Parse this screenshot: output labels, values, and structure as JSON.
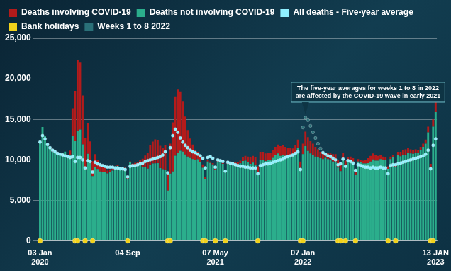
{
  "chart_data": {
    "type": "bar",
    "stacked": true,
    "grid": true,
    "legend": "top",
    "annotation": "The five-year averages for weeks 1 to 8 in 2022\nare affected by the COVID-19 wave in early 2021",
    "ylim": [
      0,
      25000
    ],
    "yticks": [
      0,
      {
        "value": 5000,
        "label": "5,000"
      },
      {
        "value": 10000,
        "label": "10,000"
      },
      {
        "value": 15000,
        "label": "15,000"
      },
      {
        "value": 20000,
        "label": "20,000"
      },
      {
        "value": 25000,
        "label": "25,000"
      }
    ],
    "categories": [
      "03 Jan\n2020",
      null,
      null,
      null,
      null,
      null,
      null,
      null,
      null,
      null,
      null,
      null,
      null,
      null,
      null,
      null,
      null,
      null,
      null,
      null,
      null,
      null,
      null,
      null,
      null,
      null,
      null,
      null,
      null,
      null,
      null,
      null,
      null,
      null,
      null,
      "04 Sep",
      null,
      null,
      null,
      null,
      null,
      null,
      null,
      null,
      null,
      null,
      null,
      null,
      null,
      null,
      null,
      null,
      null,
      null,
      null,
      null,
      null,
      null,
      null,
      null,
      null,
      null,
      null,
      null,
      null,
      null,
      null,
      null,
      null,
      null,
      "07 May\n2021",
      null,
      null,
      null,
      null,
      null,
      null,
      null,
      null,
      null,
      null,
      null,
      null,
      null,
      null,
      null,
      null,
      null,
      null,
      null,
      null,
      null,
      null,
      null,
      null,
      null,
      null,
      null,
      null,
      null,
      null,
      null,
      null,
      null,
      null,
      "07 Jan\n2022",
      null,
      null,
      null,
      null,
      null,
      null,
      null,
      null,
      null,
      null,
      null,
      null,
      null,
      null,
      null,
      null,
      null,
      null,
      null,
      null,
      null,
      null,
      null,
      null,
      null,
      null,
      null,
      null,
      null,
      null,
      null,
      null,
      null,
      null,
      null,
      null,
      null,
      null,
      null,
      null,
      null,
      null,
      null,
      null,
      null,
      null,
      null,
      null,
      null,
      null,
      null,
      null,
      "13 JAN\n2023"
    ],
    "series": [
      {
        "name": "Deaths involving COVID-19",
        "color": "#b31b1b",
        "type": "bar",
        "values": [
          0,
          0,
          0,
          0,
          0,
          0,
          0,
          0,
          0,
          0,
          0,
          103,
          539,
          3475,
          6213,
          8758,
          8237,
          6035,
          3930,
          3810,
          2589,
          1822,
          1588,
          1114,
          783,
          606,
          532,
          366,
          295,
          217,
          193,
          152,
          138,
          101,
          78,
          99,
          139,
          215,
          321,
          438,
          665,
          978,
          1379,
          1937,
          2466,
          2697,
          2964,
          2868,
          2756,
          2661,
          3145,
          2300,
          3699,
          6057,
          7245,
          7776,
          7320,
          6154,
          4678,
          3296,
          2408,
          1811,
          1212,
          913,
          598,
          400,
          272,
          200,
          180,
          150,
          120,
          110,
          100,
          100,
          90,
          95,
          100,
          130,
          180,
          250,
          330,
          450,
          600,
          700,
          800,
          850,
          900,
          950,
          1000,
          1000,
          950,
          900,
          900,
          950,
          1000,
          1100,
          1200,
          1150,
          1100,
          1000,
          1000,
          950,
          950,
          1000,
          800,
          1300,
          1800,
          1700,
          1500,
          1400,
          1200,
          1000,
          800,
          700,
          650,
          700,
          800,
          900,
          1000,
          950,
          900,
          800,
          700,
          600,
          500,
          400,
          300,
          300,
          300,
          350,
          450,
          600,
          700,
          750,
          700,
          600,
          500,
          400,
          350,
          300,
          300,
          300,
          350,
          450,
          550,
          650,
          650,
          600,
          500,
          450,
          400,
          350,
          350,
          400,
          500,
          700,
          500,
          900,
          1200
        ]
      },
      {
        "name": "Deaths not involving COVID-19",
        "color": "#2bae8c",
        "type": "bar",
        "values": [
          12254,
          14058,
          12990,
          11856,
          11612,
          10986,
          10944,
          10841,
          10816,
          10895,
          11019,
          10542,
          10602,
          12912,
          12303,
          13593,
          13760,
          11918,
          8727,
          10763,
          9699,
          8002,
          9121,
          8862,
          8556,
          8534,
          8447,
          8324,
          8528,
          8674,
          8753,
          9240,
          8854,
          8730,
          8954,
          7640,
          9672,
          9308,
          9313,
          9262,
          9338,
          9158,
          9155,
          8926,
          9346,
          9557,
          9571,
          9588,
          8992,
          8859,
          8710,
          6200,
          8301,
          8560,
          10506,
          10900,
          11128,
          11023,
          10676,
          10393,
          10232,
          10088,
          10017,
          10074,
          9713,
          9032,
          7625,
          9798,
          9620,
          9450,
          8780,
          9790,
          9700,
          9500,
          8510,
          9505,
          9400,
          9470,
          9520,
          9450,
          9570,
          9850,
          9900,
          9700,
          9500,
          9650,
          9400,
          8250,
          10000,
          10000,
          9850,
          10000,
          10000,
          10250,
          10600,
          10800,
          10500,
          10650,
          10500,
          10500,
          10500,
          10450,
          10850,
          11500,
          9000,
          10700,
          11700,
          11100,
          10800,
          10600,
          10400,
          10300,
          10200,
          10100,
          10250,
          10100,
          10000,
          9800,
          9700,
          9050,
          8600,
          10100,
          9200,
          9700,
          9900,
          9800,
          8200,
          9800,
          9700,
          9550,
          9550,
          9600,
          9800,
          10050,
          9900,
          9900,
          10100,
          10000,
          9950,
          8900,
          10100,
          10300,
          9150,
          10550,
          10450,
          10550,
          10650,
          10900,
          10800,
          10750,
          10900,
          10850,
          11250,
          11600,
          12000,
          13400,
          9000,
          14100,
          15900
        ]
      },
      {
        "name": "All deaths - Five-year average",
        "color": "#8ff0ff",
        "type": "line",
        "marker": "circle",
        "line_style": "none",
        "values": [
          12200,
          13000,
          12600,
          11900,
          11500,
          11200,
          11000,
          10800,
          10700,
          10600,
          10500,
          10400,
          10300,
          10400,
          9800,
          10300,
          10300,
          10000,
          9000,
          9900,
          9800,
          8500,
          9700,
          9500,
          9400,
          9300,
          9200,
          9100,
          9100,
          9100,
          9000,
          9000,
          8900,
          8900,
          8800,
          7900,
          9200,
          9300,
          9300,
          9400,
          9500,
          9600,
          9800,
          9900,
          10000,
          10100,
          10200,
          10300,
          10400,
          10600,
          11000,
          8400,
          11500,
          13000,
          13800,
          13400,
          12700,
          12200,
          11800,
          11500,
          11200,
          11000,
          10900,
          10700,
          10500,
          10200,
          9000,
          10300,
          10400,
          10200,
          9100,
          10000,
          9900,
          9800,
          8600,
          9700,
          9600,
          9500,
          9400,
          9300,
          9200,
          9200,
          9100,
          9100,
          9000,
          9000,
          9000,
          8300,
          9300,
          9400,
          9500,
          9500,
          9600,
          9700,
          9800,
          9900,
          10000,
          10100,
          10300,
          10400,
          10500,
          10600,
          10800,
          11000,
          8800,
          null,
          null,
          null,
          null,
          null,
          null,
          null,
          null,
          10900,
          10700,
          10500,
          10400,
          10200,
          10000,
          9400,
          9500,
          10100,
          9200,
          9900,
          9800,
          9600,
          8700,
          9400,
          9300,
          9200,
          9100,
          9100,
          9000,
          9100,
          9000,
          9000,
          9100,
          9000,
          9000,
          8300,
          9300,
          9400,
          9400,
          9500,
          9600,
          9700,
          9800,
          9900,
          10000,
          10100,
          10200,
          10300,
          10400,
          10500,
          10700,
          11200,
          8900,
          11800,
          12600
        ]
      },
      {
        "name": "Bank holidays",
        "color": "#f2d21b",
        "type": "line",
        "marker": "circle",
        "line_style": "none",
        "values": [
          0,
          null,
          null,
          null,
          null,
          null,
          null,
          null,
          null,
          null,
          null,
          null,
          null,
          null,
          0,
          0,
          null,
          null,
          0,
          null,
          null,
          0,
          null,
          null,
          null,
          null,
          null,
          null,
          null,
          null,
          null,
          null,
          null,
          null,
          null,
          0,
          null,
          null,
          null,
          null,
          null,
          null,
          null,
          null,
          null,
          null,
          null,
          null,
          null,
          null,
          null,
          0,
          0,
          null,
          null,
          null,
          null,
          null,
          null,
          null,
          null,
          null,
          null,
          null,
          null,
          0,
          0,
          null,
          null,
          null,
          0,
          null,
          null,
          null,
          0,
          null,
          null,
          null,
          null,
          null,
          null,
          null,
          null,
          null,
          null,
          null,
          null,
          0,
          null,
          null,
          null,
          null,
          null,
          null,
          null,
          null,
          null,
          null,
          null,
          null,
          null,
          null,
          null,
          null,
          0,
          0,
          null,
          null,
          null,
          null,
          null,
          null,
          null,
          null,
          null,
          null,
          null,
          null,
          null,
          0,
          0,
          null,
          0,
          null,
          null,
          null,
          0,
          null,
          null,
          null,
          null,
          null,
          null,
          null,
          null,
          null,
          null,
          null,
          null,
          0,
          null,
          null,
          0,
          null,
          null,
          null,
          null,
          null,
          null,
          null,
          null,
          null,
          null,
          null,
          null,
          null,
          0,
          0,
          null
        ]
      },
      {
        "name": "Weeks 1 to 8 2022",
        "color": "#2a7078",
        "type": "line",
        "marker": "circle",
        "line_style": "none",
        "values": [
          null,
          null,
          null,
          null,
          null,
          null,
          null,
          null,
          null,
          null,
          null,
          null,
          null,
          null,
          null,
          null,
          null,
          null,
          null,
          null,
          null,
          null,
          null,
          null,
          null,
          null,
          null,
          null,
          null,
          null,
          null,
          null,
          null,
          null,
          null,
          null,
          null,
          null,
          null,
          null,
          null,
          null,
          null,
          null,
          null,
          null,
          null,
          null,
          null,
          null,
          null,
          null,
          null,
          null,
          null,
          null,
          null,
          null,
          null,
          null,
          null,
          null,
          null,
          null,
          null,
          null,
          null,
          null,
          null,
          null,
          null,
          null,
          null,
          null,
          null,
          null,
          null,
          null,
          null,
          null,
          null,
          null,
          null,
          null,
          null,
          null,
          null,
          null,
          null,
          null,
          null,
          null,
          null,
          null,
          null,
          null,
          null,
          null,
          null,
          null,
          null,
          null,
          null,
          null,
          null,
          14000,
          15200,
          14900,
          14200,
          13400,
          12700,
          12000,
          11400,
          null,
          null,
          null,
          null,
          null,
          null,
          null,
          null,
          null,
          null,
          null,
          null,
          null,
          null,
          null,
          null,
          null,
          null,
          null,
          null,
          null,
          null,
          null,
          null,
          null,
          null,
          null,
          null,
          null,
          null,
          null,
          null,
          null,
          null,
          null,
          null,
          null,
          null,
          null,
          null,
          null,
          null,
          null,
          null,
          null,
          null
        ]
      }
    ]
  }
}
